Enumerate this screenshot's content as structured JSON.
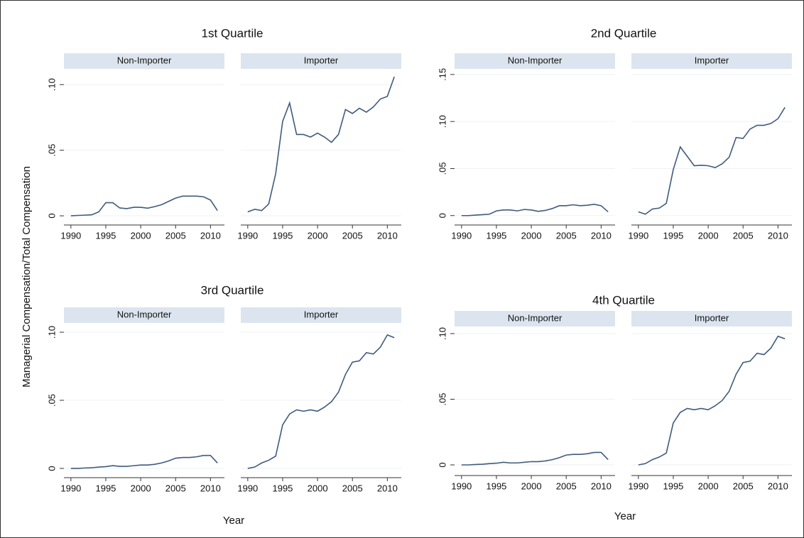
{
  "ylabel": "Managerial Compensation/Total Compensation",
  "chart_data": [
    {
      "type": "line",
      "title": "1st Quartile",
      "xlim": [
        1989,
        2012
      ],
      "xticks": [
        1990,
        1995,
        2000,
        2005,
        2010
      ],
      "ylim": [
        -0.007,
        0.112
      ],
      "yticks": [
        0,
        {
          "value": 0.05,
          "label": ".05"
        },
        {
          "value": 0.1,
          "label": ".10"
        }
      ],
      "color": "#3f5a7d",
      "grid": true,
      "panels": [
        {
          "subtitle": "Non-Importer",
          "x": [
            1990,
            1991,
            1992,
            1993,
            1994,
            1995,
            1996,
            1997,
            1998,
            1999,
            2000,
            2001,
            2002,
            2003,
            2004,
            2005,
            2006,
            2007,
            2008,
            2009,
            2010,
            2011
          ],
          "values": [
            0,
            0.0003,
            0.0005,
            0.0008,
            0.003,
            0.01,
            0.01,
            0.006,
            0.0055,
            0.0065,
            0.0065,
            0.0058,
            0.007,
            0.0085,
            0.011,
            0.0135,
            0.015,
            0.015,
            0.015,
            0.0145,
            0.012,
            0.004
          ]
        },
        {
          "subtitle": "Importer",
          "x": [
            1990,
            1991,
            1992,
            1993,
            1994,
            1995,
            1996,
            1997,
            1998,
            1999,
            2000,
            2001,
            2002,
            2003,
            2004,
            2005,
            2006,
            2007,
            2008,
            2009,
            2010,
            2011
          ],
          "values": [
            0.003,
            0.005,
            0.004,
            0.009,
            0.032,
            0.072,
            0.086,
            0.062,
            0.062,
            0.06,
            0.063,
            0.06,
            0.056,
            0.062,
            0.081,
            0.078,
            0.082,
            0.079,
            0.083,
            0.089,
            0.091,
            0.106
          ]
        }
      ]
    },
    {
      "type": "line",
      "title": "2nd Quartile",
      "xlim": [
        1989,
        2012
      ],
      "xticks": [
        1990,
        1995,
        2000,
        2005,
        2010
      ],
      "ylim": [
        -0.01,
        0.156
      ],
      "yticks": [
        0,
        {
          "value": 0.05,
          "label": ".05"
        },
        {
          "value": 0.1,
          "label": ".10"
        },
        {
          "value": 0.15,
          "label": ".15"
        }
      ],
      "color": "#3f5a7d",
      "grid": true,
      "panels": [
        {
          "subtitle": "Non-Importer",
          "x": [
            1990,
            1991,
            1992,
            1993,
            1994,
            1995,
            1996,
            1997,
            1998,
            1999,
            2000,
            2001,
            2002,
            2003,
            2004,
            2005,
            2006,
            2007,
            2008,
            2009,
            2010,
            2011
          ],
          "values": [
            0,
            0,
            0.0005,
            0.001,
            0.0015,
            0.005,
            0.006,
            0.006,
            0.005,
            0.0065,
            0.006,
            0.0045,
            0.0055,
            0.0075,
            0.0105,
            0.0105,
            0.0115,
            0.0105,
            0.011,
            0.012,
            0.0105,
            0.004
          ]
        },
        {
          "subtitle": "Importer",
          "x": [
            1990,
            1991,
            1992,
            1993,
            1994,
            1995,
            1996,
            1997,
            1998,
            1999,
            2000,
            2001,
            2002,
            2003,
            2004,
            2005,
            2006,
            2007,
            2008,
            2009,
            2010,
            2011
          ],
          "values": [
            0.004,
            0.0015,
            0.007,
            0.008,
            0.013,
            0.049,
            0.073,
            0.063,
            0.053,
            0.0535,
            0.053,
            0.051,
            0.055,
            0.062,
            0.083,
            0.082,
            0.092,
            0.096,
            0.096,
            0.098,
            0.103,
            0.115
          ]
        }
      ]
    },
    {
      "type": "line",
      "title": "3rd Quartile",
      "xlabel": "Year",
      "xlim": [
        1989,
        2012
      ],
      "xticks": [
        1990,
        1995,
        2000,
        2005,
        2010
      ],
      "ylim": [
        -0.0068,
        0.1068
      ],
      "yticks": [
        0,
        {
          "value": 0.05,
          "label": ".05"
        },
        {
          "value": 0.1,
          "label": ".10"
        }
      ],
      "color": "#3f5a7d",
      "grid": true,
      "panels": [
        {
          "subtitle": "Non-Importer",
          "x": [
            1990,
            1991,
            1992,
            1993,
            1994,
            1995,
            1996,
            1997,
            1998,
            1999,
            2000,
            2001,
            2002,
            2003,
            2004,
            2005,
            2006,
            2007,
            2008,
            2009,
            2010,
            2011
          ],
          "values": [
            0,
            0,
            0.0003,
            0.0005,
            0.001,
            0.0013,
            0.002,
            0.0015,
            0.0015,
            0.002,
            0.0025,
            0.0025,
            0.003,
            0.004,
            0.0055,
            0.0075,
            0.008,
            0.008,
            0.0085,
            0.0095,
            0.0095,
            0.004
          ]
        },
        {
          "subtitle": "Importer",
          "x": [
            1990,
            1991,
            1992,
            1993,
            1994,
            1995,
            1996,
            1997,
            1998,
            1999,
            2000,
            2001,
            2002,
            2003,
            2004,
            2005,
            2006,
            2007,
            2008,
            2009,
            2010,
            2011
          ],
          "values": [
            0,
            0.001,
            0.004,
            0.006,
            0.009,
            0.032,
            0.04,
            0.043,
            0.042,
            0.043,
            0.042,
            0.045,
            0.049,
            0.056,
            0.069,
            0.078,
            0.079,
            0.085,
            0.084,
            0.089,
            0.098,
            0.096
          ]
        }
      ]
    },
    {
      "type": "line",
      "title": "4th Quartile",
      "xlabel": "Year",
      "xlim": [
        1989,
        2012
      ],
      "xticks": [
        1990,
        1995,
        2000,
        2005,
        2010
      ],
      "ylim": [
        -0.0081,
        0.1054
      ],
      "yticks": [
        0,
        {
          "value": 0.05,
          "label": ".05"
        },
        {
          "value": 0.1,
          "label": ".10"
        }
      ],
      "color": "#3f5a7d",
      "grid": true,
      "panels": [
        {
          "subtitle": "Non-Importer",
          "x": [
            1990,
            1991,
            1992,
            1993,
            1994,
            1995,
            1996,
            1997,
            1998,
            1999,
            2000,
            2001,
            2002,
            2003,
            2004,
            2005,
            2006,
            2007,
            2008,
            2009,
            2010,
            2011
          ],
          "values": [
            0,
            0,
            0.0003,
            0.0005,
            0.001,
            0.0013,
            0.002,
            0.0015,
            0.0015,
            0.002,
            0.0025,
            0.0025,
            0.003,
            0.004,
            0.0055,
            0.0075,
            0.008,
            0.008,
            0.0085,
            0.0095,
            0.0095,
            0.004
          ]
        },
        {
          "subtitle": "Importer",
          "x": [
            1990,
            1991,
            1992,
            1993,
            1994,
            1995,
            1996,
            1997,
            1998,
            1999,
            2000,
            2001,
            2002,
            2003,
            2004,
            2005,
            2006,
            2007,
            2008,
            2009,
            2010,
            2011
          ],
          "values": [
            0,
            0.001,
            0.004,
            0.006,
            0.009,
            0.032,
            0.04,
            0.043,
            0.042,
            0.043,
            0.042,
            0.045,
            0.049,
            0.056,
            0.069,
            0.078,
            0.079,
            0.085,
            0.084,
            0.089,
            0.098,
            0.096
          ]
        }
      ]
    }
  ]
}
